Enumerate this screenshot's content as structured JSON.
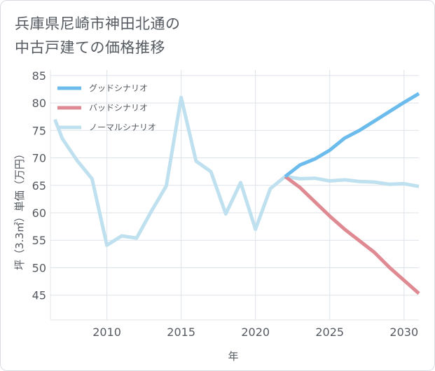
{
  "page_title": "兵庫県尼崎市神田北通の\n中古戸建ての価格推移",
  "chart_data": {
    "type": "line",
    "title": "兵庫県尼崎市神田北通の中古戸建ての価格推移",
    "xlabel": "年",
    "ylabel": "坪（3.3㎡）単価（万円）",
    "xlim": [
      2006.2,
      2031
    ],
    "ylim": [
      40.5,
      86
    ],
    "xticks": [
      2010,
      2015,
      2020,
      2025,
      2030
    ],
    "yticks": [
      45,
      50,
      55,
      60,
      65,
      70,
      75,
      80,
      85
    ],
    "legend_position": "top-left",
    "series": [
      {
        "name": "グッドシナリオ",
        "color": "#6bbcec",
        "x": [
          2022,
          2023,
          2024,
          2025,
          2026,
          2027,
          2028,
          2029,
          2030,
          2031
        ],
        "y": [
          66.6,
          68.7,
          69.8,
          71.4,
          73.6,
          75.0,
          76.7,
          78.4,
          80.1,
          81.7
        ]
      },
      {
        "name": "バッドシナリオ",
        "color": "#df8a92",
        "x": [
          2022,
          2023,
          2024,
          2025,
          2026,
          2027,
          2028,
          2029,
          2030,
          2031
        ],
        "y": [
          66.6,
          64.6,
          62.0,
          59.4,
          57.0,
          54.9,
          52.8,
          50.1,
          47.7,
          45.3
        ]
      },
      {
        "name": "ノーマルシナリオ",
        "color": "#bfe0ef",
        "x": [
          2006.5,
          2007,
          2008,
          2009,
          2010,
          2011,
          2012,
          2013,
          2014,
          2015,
          2016,
          2017,
          2018,
          2019,
          2020,
          2021,
          2022,
          2023,
          2024,
          2025,
          2026,
          2027,
          2028,
          2029,
          2030,
          2031
        ],
        "y": [
          77.0,
          73.5,
          69.5,
          66.2,
          54.1,
          55.8,
          55.4,
          60.3,
          64.9,
          81.0,
          69.4,
          67.5,
          59.8,
          65.5,
          57.0,
          64.4,
          66.6,
          66.2,
          66.3,
          65.8,
          66.0,
          65.7,
          65.6,
          65.2,
          65.3,
          64.8
        ]
      }
    ]
  }
}
